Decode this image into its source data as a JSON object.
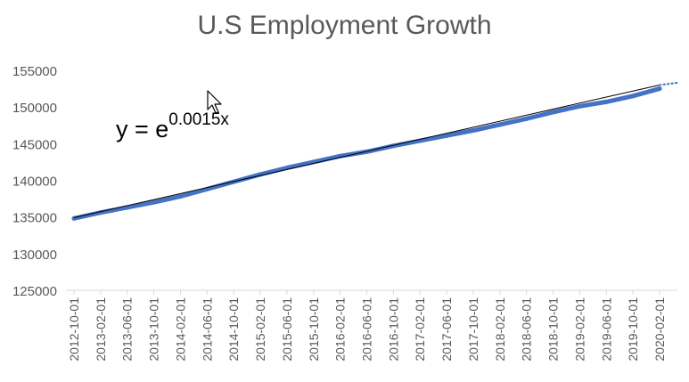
{
  "chart_data": {
    "type": "line",
    "title": "U.S Employment Growth",
    "xlabel": "",
    "ylabel": "",
    "ylim": [
      125000,
      155000
    ],
    "yticks": [
      125000,
      130000,
      135000,
      140000,
      145000,
      150000,
      155000
    ],
    "x_tick_labels": [
      "2012-10-01",
      "2013-02-01",
      "2013-06-01",
      "2013-10-01",
      "2014-02-01",
      "2014-06-01",
      "2014-10-01",
      "2015-02-01",
      "2015-06-01",
      "2015-10-01",
      "2016-02-01",
      "2016-06-01",
      "2016-10-01",
      "2017-02-01",
      "2017-06-01",
      "2017-10-01",
      "2018-02-01",
      "2018-06-01",
      "2018-10-01",
      "2019-02-01",
      "2019-06-01",
      "2019-10-01",
      "2020-02-01"
    ],
    "grid": false,
    "legend": "none",
    "series": [
      {
        "color": "#4472c4",
        "x": [
          "2012-10-01",
          "2013-02-01",
          "2013-06-01",
          "2013-10-01",
          "2014-02-01",
          "2014-06-01",
          "2014-10-01",
          "2015-02-01",
          "2015-06-01",
          "2015-10-01",
          "2016-02-01",
          "2016-06-01",
          "2016-10-01",
          "2017-02-01",
          "2017-06-01",
          "2017-10-01",
          "2018-02-01",
          "2018-06-01",
          "2018-10-01",
          "2019-02-01",
          "2019-06-01",
          "2019-10-01",
          "2020-02-01"
        ],
        "values": [
          134800,
          135600,
          136300,
          137000,
          137800,
          138800,
          139800,
          140800,
          141700,
          142500,
          143300,
          143900,
          144700,
          145400,
          146100,
          146800,
          147600,
          148400,
          149300,
          150100,
          150700,
          151500,
          152500
        ]
      }
    ],
    "trendline": {
      "type": "exponential",
      "color_solid": "#000000",
      "color_dotted": "#4472c4",
      "start": 134900,
      "end": 153000,
      "forecast_end": 153300,
      "equation_base": "y = e",
      "equation_exponent": "0.0015x"
    }
  }
}
